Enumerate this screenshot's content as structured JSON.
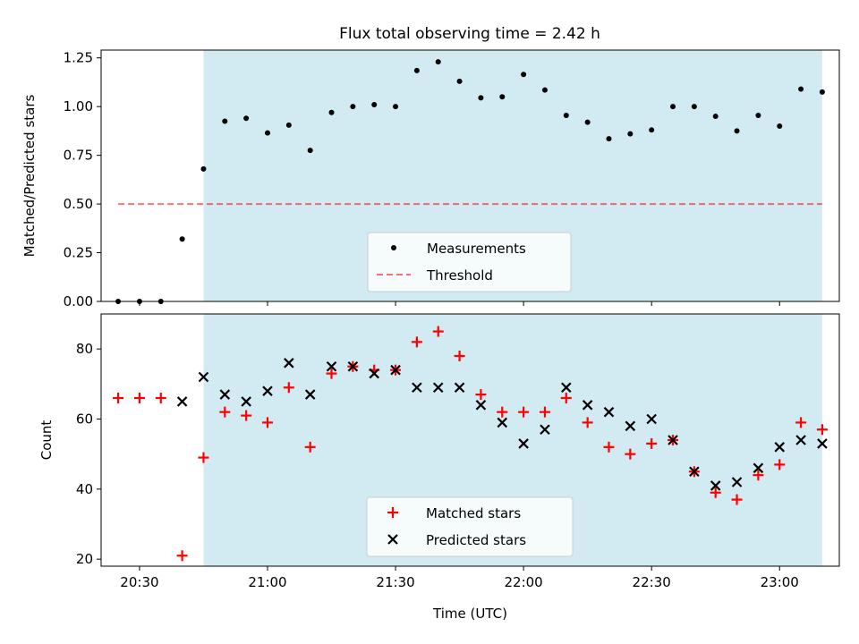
{
  "figure": {
    "title": "Flux total observing time = 2.42 h"
  },
  "colors": {
    "shade": "#add8e6",
    "measurement": "#000000",
    "threshold": "#ff0000",
    "matched": "#ff0000",
    "predicted": "#000000"
  },
  "chart_data": [
    {
      "type": "scatter",
      "ylabel": "Matched/Predicted stars",
      "xlim": [
        "20:21",
        "23:14"
      ],
      "ylim": [
        0,
        1.29
      ],
      "yticks": [
        "0.00",
        "0.25",
        "0.50",
        "0.75",
        "1.00",
        "1.25"
      ],
      "xticks": [
        "20:30",
        "21:00",
        "21:30",
        "22:00",
        "22:30",
        "23:00"
      ],
      "shaded_interval": [
        "20:45",
        "23:10"
      ],
      "threshold": {
        "name": "Threshold",
        "value": 0.5,
        "x_range": [
          "20:25",
          "23:10"
        ],
        "style": "dashed"
      },
      "series": [
        {
          "name": "Measurements",
          "x": [
            "20:25",
            "20:30",
            "20:35",
            "20:40",
            "20:45",
            "20:50",
            "20:55",
            "21:00",
            "21:05",
            "21:10",
            "21:15",
            "21:20",
            "21:25",
            "21:30",
            "21:35",
            "21:40",
            "21:45",
            "21:50",
            "21:55",
            "22:00",
            "22:05",
            "22:10",
            "22:15",
            "22:20",
            "22:25",
            "22:30",
            "22:35",
            "22:40",
            "22:45",
            "22:50",
            "22:55",
            "23:00",
            "23:05",
            "23:10"
          ],
          "y": [
            0.0,
            0.0,
            0.0,
            0.32,
            0.68,
            0.925,
            0.94,
            0.865,
            0.905,
            0.775,
            0.97,
            1.0,
            1.01,
            1.0,
            1.185,
            1.23,
            1.13,
            1.045,
            1.05,
            1.165,
            1.085,
            0.955,
            0.92,
            0.835,
            0.86,
            0.88,
            1.0,
            1.0,
            0.95,
            0.875,
            0.955,
            0.9,
            1.09,
            1.075
          ]
        }
      ],
      "legend": {
        "placement": "lower-center",
        "entries": [
          "Measurements",
          "Threshold"
        ]
      }
    },
    {
      "type": "scatter",
      "xlabel": "Time (UTC)",
      "ylabel": "Count",
      "xlim": [
        "20:21",
        "23:14"
      ],
      "ylim": [
        18,
        90
      ],
      "yticks": [
        "20",
        "40",
        "60",
        "80"
      ],
      "xticks": [
        "20:30",
        "21:00",
        "21:30",
        "22:00",
        "22:30",
        "23:00"
      ],
      "shaded_interval": [
        "20:45",
        "23:10"
      ],
      "series": [
        {
          "name": "Matched stars",
          "marker": "plus",
          "x": [
            "20:25",
            "20:30",
            "20:35",
            "20:40",
            "20:45",
            "20:50",
            "20:55",
            "21:00",
            "21:05",
            "21:10",
            "21:15",
            "21:20",
            "21:25",
            "21:30",
            "21:35",
            "21:40",
            "21:45",
            "21:50",
            "21:55",
            "22:00",
            "22:05",
            "22:10",
            "22:15",
            "22:20",
            "22:25",
            "22:30",
            "22:35",
            "22:40",
            "22:45",
            "22:50",
            "22:55",
            "23:00",
            "23:05",
            "23:10"
          ],
          "y": [
            66,
            66,
            66,
            21,
            49,
            62,
            61,
            59,
            69,
            52,
            73,
            75,
            74,
            74,
            82,
            85,
            78,
            67,
            62,
            62,
            62,
            66,
            59,
            52,
            50,
            53,
            54,
            45,
            39,
            37,
            44,
            47,
            59,
            57
          ]
        },
        {
          "name": "Predicted stars",
          "marker": "x",
          "x": [
            "20:40",
            "20:45",
            "20:50",
            "20:55",
            "21:00",
            "21:05",
            "21:10",
            "21:15",
            "21:20",
            "21:25",
            "21:30",
            "21:35",
            "21:40",
            "21:45",
            "21:50",
            "21:55",
            "22:00",
            "22:05",
            "22:10",
            "22:15",
            "22:20",
            "22:25",
            "22:30",
            "22:35",
            "22:40",
            "22:45",
            "22:50",
            "22:55",
            "23:00",
            "23:05",
            "23:10"
          ],
          "y": [
            65,
            72,
            67,
            65,
            68,
            76,
            67,
            75,
            75,
            73,
            74,
            69,
            69,
            69,
            64,
            59,
            53,
            57,
            69,
            64,
            62,
            58,
            60,
            54,
            45,
            41,
            42,
            46,
            52,
            54,
            53
          ]
        }
      ],
      "legend": {
        "placement": "lower-center",
        "entries": [
          "Matched stars",
          "Predicted stars"
        ]
      }
    }
  ]
}
